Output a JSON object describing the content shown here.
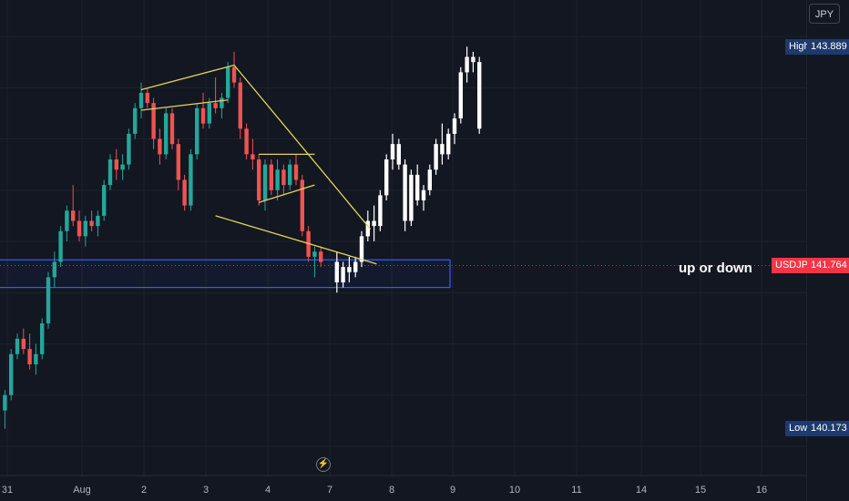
{
  "currency_button": "JPY",
  "annotation_text": "up or down",
  "high_label": {
    "name": "High",
    "value": "143.889"
  },
  "low_label": {
    "name": "Low",
    "value": "140.173"
  },
  "symbol_label": {
    "name": "USDJPY",
    "value": "141.764"
  },
  "colors": {
    "background": "#131722",
    "up": "#26a69a",
    "down": "#ef5350",
    "projection": "#ffffff",
    "pattern": "#e3d45a",
    "zone": "#2962ff",
    "grid": "#1e222d"
  },
  "chart_data": {
    "type": "candlestick",
    "symbol": "USDJPY",
    "price_axis": {
      "ticks": [
        "144.000",
        "143.500",
        "143.000",
        "142.500",
        "142.000",
        "141.500",
        "141.000",
        "140.500",
        "140.000"
      ],
      "tick_values": [
        144.0,
        143.5,
        143.0,
        142.5,
        142.0,
        141.5,
        141.0,
        140.5,
        140.0
      ],
      "range": [
        139.75,
        144.2
      ]
    },
    "time_axis": {
      "ticks": [
        "31",
        "Aug",
        "2",
        "3",
        "4",
        "7",
        "8",
        "9",
        "10",
        "11",
        "14",
        "15",
        "16"
      ]
    },
    "current_price": 141.764,
    "high": 143.889,
    "low": 140.173,
    "candles": [
      {
        "o": 140.35,
        "h": 140.55,
        "l": 140.17,
        "c": 140.5
      },
      {
        "o": 140.5,
        "h": 140.95,
        "l": 140.45,
        "c": 140.9
      },
      {
        "o": 140.9,
        "h": 141.1,
        "l": 140.85,
        "c": 141.05
      },
      {
        "o": 141.05,
        "h": 141.15,
        "l": 140.9,
        "c": 140.95
      },
      {
        "o": 140.95,
        "h": 141.1,
        "l": 140.75,
        "c": 140.8
      },
      {
        "o": 140.8,
        "h": 141.0,
        "l": 140.7,
        "c": 140.9
      },
      {
        "o": 140.9,
        "h": 141.25,
        "l": 140.85,
        "c": 141.2
      },
      {
        "o": 141.2,
        "h": 141.7,
        "l": 141.15,
        "c": 141.65
      },
      {
        "o": 141.65,
        "h": 141.9,
        "l": 141.55,
        "c": 141.8
      },
      {
        "o": 141.8,
        "h": 142.15,
        "l": 141.75,
        "c": 142.1
      },
      {
        "o": 142.1,
        "h": 142.35,
        "l": 142.0,
        "c": 142.3
      },
      {
        "o": 142.3,
        "h": 142.55,
        "l": 142.15,
        "c": 142.2
      },
      {
        "o": 142.2,
        "h": 142.3,
        "l": 142.0,
        "c": 142.05
      },
      {
        "o": 142.05,
        "h": 142.25,
        "l": 141.95,
        "c": 142.2
      },
      {
        "o": 142.2,
        "h": 142.3,
        "l": 142.1,
        "c": 142.15
      },
      {
        "o": 142.15,
        "h": 142.3,
        "l": 142.05,
        "c": 142.25
      },
      {
        "o": 142.25,
        "h": 142.6,
        "l": 142.2,
        "c": 142.55
      },
      {
        "o": 142.55,
        "h": 142.85,
        "l": 142.5,
        "c": 142.8
      },
      {
        "o": 142.8,
        "h": 142.9,
        "l": 142.6,
        "c": 142.7
      },
      {
        "o": 142.7,
        "h": 142.85,
        "l": 142.6,
        "c": 142.75
      },
      {
        "o": 142.75,
        "h": 143.1,
        "l": 142.7,
        "c": 143.05
      },
      {
        "o": 143.05,
        "h": 143.35,
        "l": 143.0,
        "c": 143.3
      },
      {
        "o": 143.3,
        "h": 143.55,
        "l": 143.2,
        "c": 143.45
      },
      {
        "o": 143.45,
        "h": 143.5,
        "l": 143.3,
        "c": 143.35
      },
      {
        "o": 143.35,
        "h": 143.4,
        "l": 142.9,
        "c": 143.0
      },
      {
        "o": 143.0,
        "h": 143.1,
        "l": 142.75,
        "c": 142.85
      },
      {
        "o": 142.85,
        "h": 143.3,
        "l": 142.8,
        "c": 143.25
      },
      {
        "o": 143.25,
        "h": 143.3,
        "l": 142.9,
        "c": 142.95
      },
      {
        "o": 142.95,
        "h": 143.0,
        "l": 142.5,
        "c": 142.6
      },
      {
        "o": 142.6,
        "h": 142.65,
        "l": 142.3,
        "c": 142.35
      },
      {
        "o": 142.35,
        "h": 142.9,
        "l": 142.3,
        "c": 142.85
      },
      {
        "o": 142.85,
        "h": 143.35,
        "l": 142.8,
        "c": 143.3
      },
      {
        "o": 143.3,
        "h": 143.45,
        "l": 143.1,
        "c": 143.15
      },
      {
        "o": 143.15,
        "h": 143.4,
        "l": 143.1,
        "c": 143.35
      },
      {
        "o": 143.35,
        "h": 143.6,
        "l": 143.25,
        "c": 143.3
      },
      {
        "o": 143.3,
        "h": 143.45,
        "l": 143.2,
        "c": 143.4
      },
      {
        "o": 143.4,
        "h": 143.75,
        "l": 143.35,
        "c": 143.7
      },
      {
        "o": 143.7,
        "h": 143.85,
        "l": 143.5,
        "c": 143.55
      },
      {
        "o": 143.55,
        "h": 143.6,
        "l": 143.0,
        "c": 143.1
      },
      {
        "o": 143.1,
        "h": 143.15,
        "l": 142.8,
        "c": 142.85
      },
      {
        "o": 142.85,
        "h": 143.0,
        "l": 142.7,
        "c": 142.8
      },
      {
        "o": 142.8,
        "h": 142.85,
        "l": 142.35,
        "c": 142.4
      },
      {
        "o": 142.4,
        "h": 142.8,
        "l": 142.3,
        "c": 142.75
      },
      {
        "o": 142.75,
        "h": 142.8,
        "l": 142.45,
        "c": 142.5
      },
      {
        "o": 142.5,
        "h": 142.8,
        "l": 142.4,
        "c": 142.7
      },
      {
        "o": 142.7,
        "h": 142.75,
        "l": 142.45,
        "c": 142.55
      },
      {
        "o": 142.55,
        "h": 142.8,
        "l": 142.5,
        "c": 142.75
      },
      {
        "o": 142.75,
        "h": 142.85,
        "l": 142.55,
        "c": 142.6
      },
      {
        "o": 142.6,
        "h": 142.65,
        "l": 142.05,
        "c": 142.1
      },
      {
        "o": 142.1,
        "h": 142.15,
        "l": 141.8,
        "c": 141.85
      },
      {
        "o": 141.85,
        "h": 141.95,
        "l": 141.65,
        "c": 141.9
      },
      {
        "o": 141.9,
        "h": 141.95,
        "l": 141.75,
        "c": 141.8
      }
    ],
    "projection": [
      {
        "o": 141.8,
        "h": 141.9,
        "l": 141.5,
        "c": 141.6
      },
      {
        "o": 141.6,
        "h": 141.8,
        "l": 141.55,
        "c": 141.75
      },
      {
        "o": 141.75,
        "h": 141.85,
        "l": 141.6,
        "c": 141.7
      },
      {
        "o": 141.7,
        "h": 141.85,
        "l": 141.65,
        "c": 141.8
      },
      {
        "o": 141.8,
        "h": 142.1,
        "l": 141.75,
        "c": 142.05
      },
      {
        "o": 142.05,
        "h": 142.3,
        "l": 142.0,
        "c": 142.2
      },
      {
        "o": 142.2,
        "h": 142.35,
        "l": 142.0,
        "c": 142.15
      },
      {
        "o": 142.15,
        "h": 142.5,
        "l": 142.1,
        "c": 142.45
      },
      {
        "o": 142.45,
        "h": 142.85,
        "l": 142.4,
        "c": 142.8
      },
      {
        "o": 142.8,
        "h": 143.05,
        "l": 142.7,
        "c": 142.95
      },
      {
        "o": 142.95,
        "h": 143.0,
        "l": 142.7,
        "c": 142.75
      },
      {
        "o": 142.75,
        "h": 142.8,
        "l": 142.1,
        "c": 142.2
      },
      {
        "o": 142.2,
        "h": 142.7,
        "l": 142.15,
        "c": 142.65
      },
      {
        "o": 142.65,
        "h": 142.75,
        "l": 142.35,
        "c": 142.4
      },
      {
        "o": 142.4,
        "h": 142.55,
        "l": 142.3,
        "c": 142.5
      },
      {
        "o": 142.5,
        "h": 142.75,
        "l": 142.45,
        "c": 142.7
      },
      {
        "o": 142.7,
        "h": 143.0,
        "l": 142.65,
        "c": 142.95
      },
      {
        "o": 142.95,
        "h": 143.15,
        "l": 142.75,
        "c": 142.85
      },
      {
        "o": 142.85,
        "h": 143.1,
        "l": 142.8,
        "c": 143.05
      },
      {
        "o": 143.05,
        "h": 143.25,
        "l": 142.95,
        "c": 143.2
      },
      {
        "o": 143.2,
        "h": 143.7,
        "l": 143.15,
        "c": 143.65
      },
      {
        "o": 143.65,
        "h": 143.9,
        "l": 143.55,
        "c": 143.8
      },
      {
        "o": 143.8,
        "h": 143.85,
        "l": 143.65,
        "c": 143.75
      },
      {
        "o": 143.75,
        "h": 143.8,
        "l": 143.05,
        "c": 143.1
      }
    ],
    "pattern_lines": [
      {
        "from": [
          34,
          142.25
        ],
        "to": [
          60,
          141.78
        ]
      },
      {
        "from": [
          37,
          143.72
        ],
        "to": [
          59,
          142.12
        ]
      },
      {
        "from": [
          22,
          143.48
        ],
        "to": [
          37,
          143.72
        ]
      },
      {
        "from": [
          22,
          143.28
        ],
        "to": [
          36,
          143.38
        ]
      },
      {
        "from": [
          41,
          142.85
        ],
        "to": [
          50,
          142.85
        ]
      },
      {
        "from": [
          41,
          142.38
        ],
        "to": [
          50,
          142.55
        ]
      }
    ],
    "zone": {
      "top": 141.82,
      "bottom": 141.55
    },
    "grid": true
  }
}
